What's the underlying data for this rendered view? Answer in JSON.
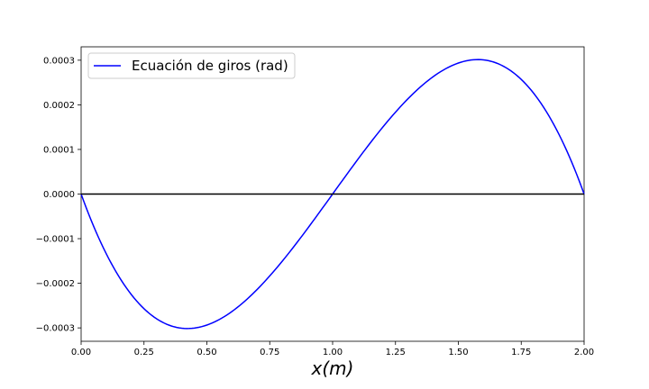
{
  "chart_data": {
    "type": "line",
    "title": "",
    "xlabel": "x(m)",
    "ylabel": "",
    "xlim": [
      0.0,
      2.0
    ],
    "ylim": [
      -0.00033,
      0.00033
    ],
    "grid": false,
    "legend_position": "top-left",
    "x_ticks": [
      "0.00",
      "0.25",
      "0.50",
      "0.75",
      "1.00",
      "1.25",
      "1.50",
      "1.75",
      "2.00"
    ],
    "y_ticks": [
      "−0.0003",
      "−0.0002",
      "−0.0001",
      "0.0000",
      "0.0001",
      "0.0002",
      "0.0003"
    ],
    "series": [
      {
        "name": "Ecuación de giros (rad)",
        "color": "#0000ff",
        "x": [
          0.0,
          0.1,
          0.2,
          0.3,
          0.4,
          0.42,
          0.5,
          0.6,
          0.7,
          0.8,
          0.9,
          1.0,
          1.1,
          1.2,
          1.3,
          1.4,
          1.5,
          1.58,
          1.6,
          1.7,
          1.8,
          1.9,
          2.0
        ],
        "y": [
          0.0,
          -0.000124,
          -0.000219,
          -0.000276,
          -0.0003,
          -0.000301,
          -0.000293,
          -0.000258,
          -0.000206,
          -0.000143,
          -7.2e-05,
          0.0,
          7.2e-05,
          0.000143,
          0.000206,
          0.000258,
          0.000293,
          0.000301,
          0.0003,
          0.000276,
          0.000219,
          0.000124,
          0.0
        ]
      },
      {
        "name": "",
        "color": "#000000",
        "x": [
          0.0,
          2.0
        ],
        "y": [
          0.0,
          0.0
        ]
      }
    ]
  }
}
